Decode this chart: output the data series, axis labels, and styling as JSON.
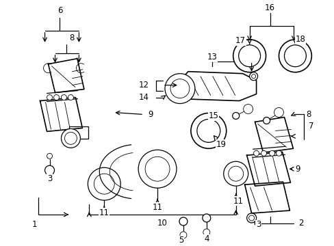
{
  "bg_color": "#ffffff",
  "line_color": "#000000",
  "text_color": "#000000",
  "figure_width": 4.89,
  "figure_height": 3.6,
  "dpi": 100,
  "label_fontsize": 8.5,
  "small_fontsize": 7.0,
  "lw_heavy": 1.2,
  "lw_med": 0.9,
  "lw_light": 0.6
}
